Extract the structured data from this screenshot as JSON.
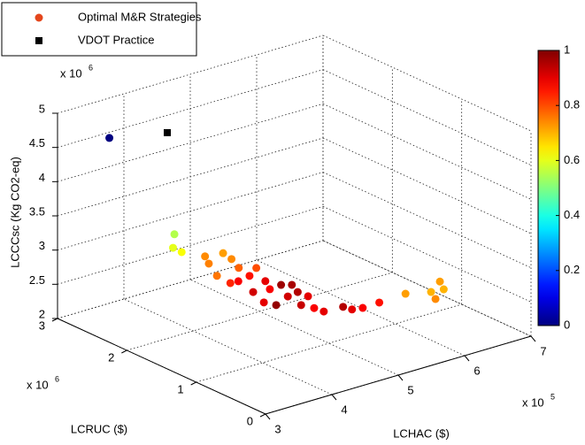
{
  "chart_data": {
    "type": "scatter3d",
    "x_label": "LCHAC ($)",
    "y_label": "LCRUC ($)",
    "z_label": "LCCCsc (Kg CO2-eq)",
    "x_multiplier": "x 10",
    "x_exponent": "5",
    "y_multiplier": "x 10",
    "y_exponent": "6",
    "z_multiplier": "x 10",
    "z_exponent": "6",
    "xlim": [
      3,
      7
    ],
    "xticks": [
      3,
      4,
      5,
      6,
      7
    ],
    "ylim": [
      0,
      3
    ],
    "yticks": [
      0,
      1,
      2,
      3
    ],
    "zlim": [
      2,
      5
    ],
    "zticks": [
      2,
      2.5,
      3,
      3.5,
      4,
      4.5,
      5
    ],
    "grid": true,
    "colormap": "jet",
    "clim": [
      0,
      1
    ],
    "cticks": [
      0,
      0.2,
      0.4,
      0.6,
      0.8,
      1
    ],
    "legend": "upper-left",
    "series": [
      {
        "name": "Optimal M&R Strategies",
        "color": "#e4461c",
        "marker": "circle",
        "x": [
          3.53,
          3.57,
          3.56,
          3.69,
          4.23,
          4.12,
          4.46,
          3.95,
          4.42,
          4.31,
          4.47,
          4.45,
          4.66,
          4.7,
          4.37,
          4.58,
          4.77,
          4.6,
          4.78,
          4.79,
          4.61,
          4.63,
          4.55,
          4.32,
          4.26,
          4.9,
          4.93,
          5.06,
          5.32,
          4.34,
          4.87,
          5.6,
          5.87,
          6.16,
          6.04,
          5.77
        ],
        "y": [
          2.76,
          1.86,
          1.87,
          1.87,
          2.05,
          1.89,
          2.01,
          1.61,
          1.85,
          1.64,
          1.54,
          1.78,
          1.82,
          1.63,
          1.49,
          1.45,
          1.47,
          1.21,
          1.24,
          1.1,
          0.84,
          0.72,
          0.97,
          1.11,
          1.23,
          0.7,
          0.6,
          0.57,
          0.58,
          1.79,
          1.41,
          0.47,
          0.36,
          0.51,
          0.34,
          0.2
        ],
        "z": [
          4.6,
          3.6,
          3.4,
          3.3,
          3.0,
          3.0,
          3.0,
          3.0,
          3.0,
          3.0,
          3.0,
          2.7,
          2.7,
          2.7,
          2.7,
          2.7,
          2.7,
          2.7,
          2.7,
          2.7,
          2.7,
          2.7,
          2.7,
          2.7,
          2.7,
          2.7,
          2.7,
          2.7,
          2.7,
          2.7,
          2.7,
          2.8,
          2.8,
          2.8,
          2.8,
          2.8
        ],
        "c": [
          0,
          0.55,
          0.6,
          0.62,
          0.74,
          0.75,
          0.72,
          0.76,
          0.74,
          0.78,
          0.8,
          0.88,
          0.86,
          0.9,
          0.92,
          0.88,
          0.97,
          0.92,
          0.95,
          0.9,
          0.88,
          0.9,
          0.93,
          0.98,
          0.9,
          0.95,
          0.9,
          0.88,
          0.86,
          0.84,
          0.96,
          0.72,
          0.7,
          0.72,
          0.7,
          0.74
        ]
      },
      {
        "name": "VDOT Practice",
        "color": "#000000",
        "marker": "square",
        "x": [
          4.1
        ],
        "y": [
          2.47
        ],
        "z": [
          4.65
        ]
      }
    ]
  }
}
